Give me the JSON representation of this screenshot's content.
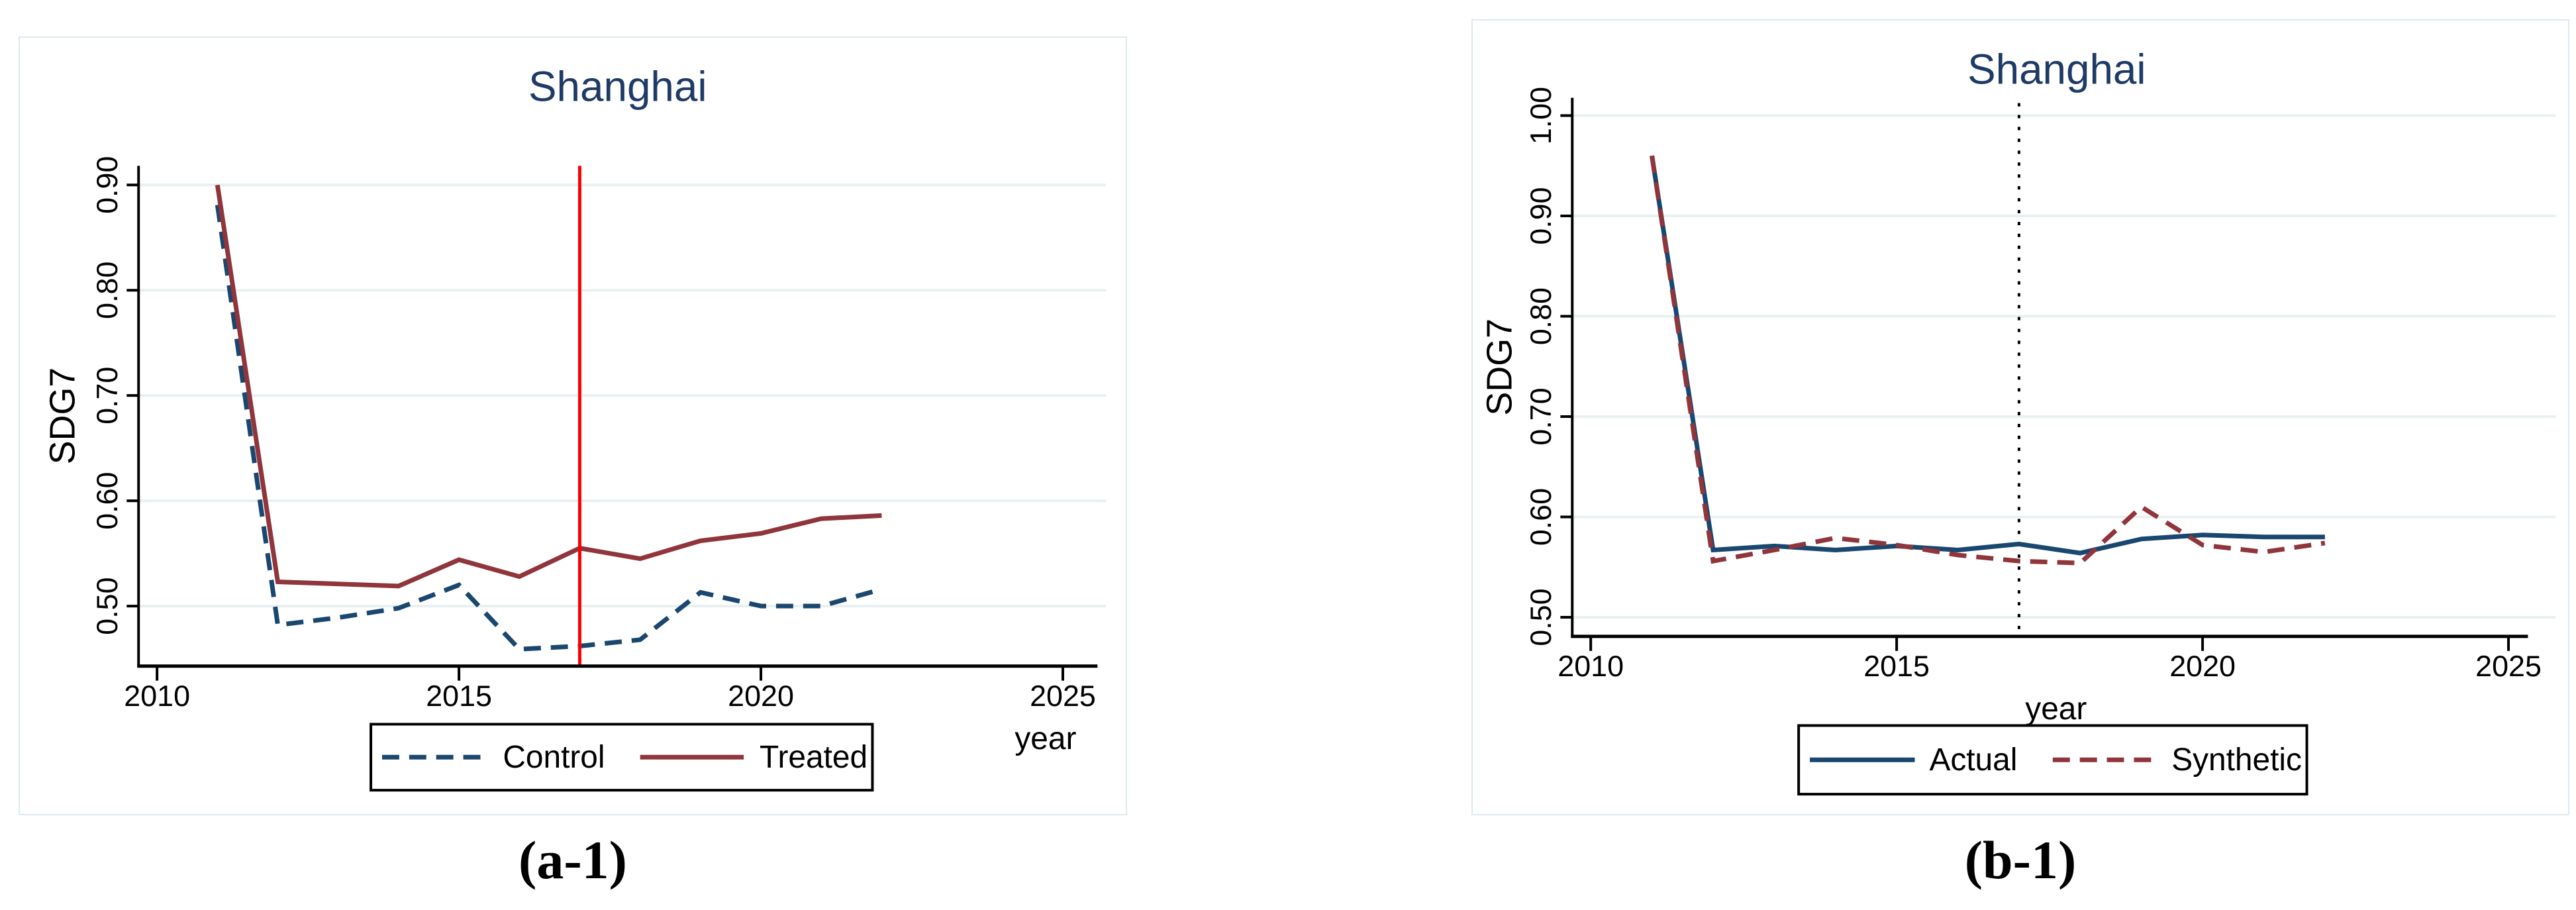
{
  "figures": [
    {
      "caption": "(a-1)"
    },
    {
      "caption": "(b-1)"
    }
  ],
  "chart_data": [
    {
      "type": "line",
      "title": "Shanghai",
      "xlabel": "year",
      "ylabel": "SDG7",
      "x": [
        2011,
        2012,
        2013,
        2014,
        2015,
        2016,
        2017,
        2018,
        2019,
        2020,
        2021,
        2022
      ],
      "series": [
        {
          "name": "Control",
          "color": "#1a476f",
          "dash": "dashed",
          "values": [
            0.881,
            0.482,
            0.489,
            0.498,
            0.52,
            0.459,
            0.462,
            0.468,
            0.513,
            0.5,
            0.5,
            0.516
          ]
        },
        {
          "name": "Treated",
          "color": "#90353b",
          "dash": "solid",
          "values": [
            0.9,
            0.523,
            0.521,
            0.519,
            0.544,
            0.528,
            0.555,
            0.545,
            0.562,
            0.569,
            0.583,
            0.586
          ]
        }
      ],
      "vline": {
        "x": 2017,
        "color": "#fe0000",
        "style": "solid"
      },
      "xticks": [
        "2010",
        "2015",
        "2020",
        "2025"
      ],
      "yticks": [
        "0.50",
        "0.60",
        "0.70",
        "0.80",
        "0.90"
      ],
      "ytick_values": [
        0.5,
        0.6,
        0.7,
        0.8,
        0.9
      ],
      "xtick_values": [
        2010,
        2015,
        2020,
        2025
      ],
      "xlim": [
        2009.7,
        2025.6
      ],
      "ylim": [
        0.443,
        0.918
      ],
      "grid": true,
      "legend_position": "bottom-center",
      "xlabel_align": "right",
      "title_color": "#1e3a66",
      "grid_color": "#e9f0f2"
    },
    {
      "type": "line",
      "title": "Shanghai",
      "xlabel": "year",
      "ylabel": "SDG7",
      "x": [
        2011,
        2012,
        2013,
        2014,
        2015,
        2016,
        2017,
        2018,
        2019,
        2020,
        2021,
        2022
      ],
      "series": [
        {
          "name": "Actual",
          "color": "#1a476f",
          "dash": "solid",
          "values": [
            0.96,
            0.567,
            0.571,
            0.567,
            0.571,
            0.567,
            0.573,
            0.564,
            0.578,
            0.582,
            0.58,
            0.58
          ]
        },
        {
          "name": "Synthetic",
          "color": "#90353b",
          "dash": "dashed",
          "values": [
            0.96,
            0.556,
            0.567,
            0.579,
            0.572,
            0.562,
            0.556,
            0.554,
            0.61,
            0.572,
            0.565,
            0.574
          ]
        }
      ],
      "vline": {
        "x": 2017,
        "color": "#000000",
        "style": "dotted"
      },
      "xticks": [
        "2010",
        "2015",
        "2020",
        "2025"
      ],
      "yticks": [
        "0.50",
        "0.60",
        "0.70",
        "0.80",
        "0.90",
        "1.00"
      ],
      "ytick_values": [
        0.5,
        0.6,
        0.7,
        0.8,
        0.9,
        1.0
      ],
      "xtick_values": [
        2010,
        2015,
        2020,
        2025
      ],
      "xlim": [
        2009.7,
        2025.5
      ],
      "ylim": [
        0.481,
        1.018
      ],
      "grid": true,
      "legend_position": "bottom-center",
      "xlabel_align": "center",
      "title_color": "#1e3a66",
      "grid_color": "#e9f0f2"
    }
  ]
}
